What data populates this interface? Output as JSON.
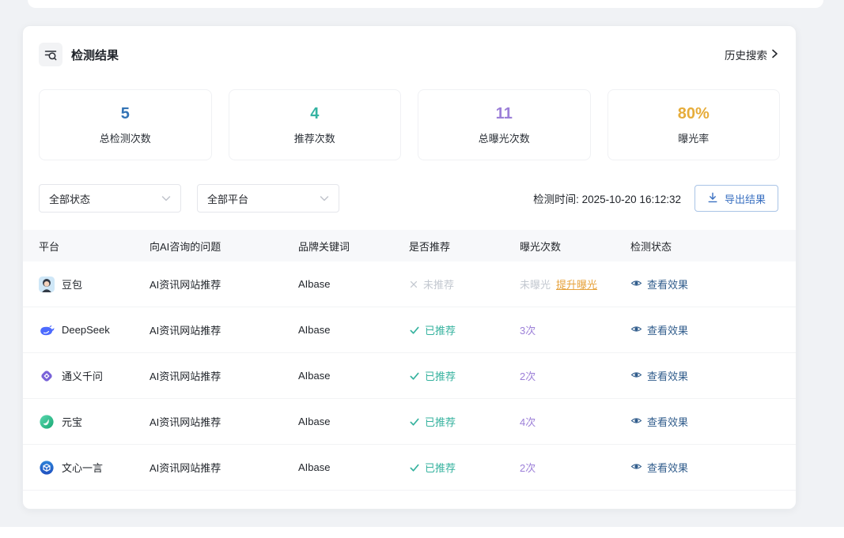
{
  "panel": {
    "title": "检测结果",
    "title_icon": "search-list-icon",
    "history_label": "历史搜索",
    "history_icon": "chevron-right-icon"
  },
  "stats": [
    {
      "value": "5",
      "label": "总检测次数",
      "color": "#3273b5"
    },
    {
      "value": "4",
      "label": "推荐次数",
      "color": "#35b3a2"
    },
    {
      "value": "11",
      "label": "总曝光次数",
      "color": "#9c7fd8"
    },
    {
      "value": "80%",
      "label": "曝光率",
      "color": "#e6ac3a"
    }
  ],
  "filters": {
    "status_value": "全部状态",
    "platform_value": "全部平台",
    "select_icon": "chevron-down-icon",
    "detect_time": "检测时间: 2025-10-20 16:12:32",
    "export_label": "导出结果",
    "export_icon": "download-icon"
  },
  "table": {
    "headers": [
      "平台",
      "向AI咨询的问题",
      "品牌关键词",
      "是否推荐",
      "曝光次数",
      "检测状态"
    ],
    "rows": [
      {
        "platform": "豆包",
        "logo_icon": "doubao-avatar-icon",
        "question": "AI资讯网站推荐",
        "keyword": "AIbase",
        "recommended": false,
        "recommend_label": "未推荐",
        "recommend_icon": "cross-icon",
        "exposure_label": "未曝光",
        "boost_label": "提升曝光",
        "action_label": "查看效果",
        "action_icon": "eye-icon"
      },
      {
        "platform": "DeepSeek",
        "logo_icon": "deepseek-whale-icon",
        "question": "AI资讯网站推荐",
        "keyword": "AIbase",
        "recommended": true,
        "recommend_label": "已推荐",
        "recommend_icon": "check-icon",
        "exposure_label": "3次",
        "action_label": "查看效果",
        "action_icon": "eye-icon"
      },
      {
        "platform": "通义千问",
        "logo_icon": "qianwen-logo-icon",
        "question": "AI资讯网站推荐",
        "keyword": "AIbase",
        "recommended": true,
        "recommend_label": "已推荐",
        "recommend_icon": "check-icon",
        "exposure_label": "2次",
        "action_label": "查看效果",
        "action_icon": "eye-icon"
      },
      {
        "platform": "元宝",
        "logo_icon": "yuanbao-logo-icon",
        "question": "AI资讯网站推荐",
        "keyword": "AIbase",
        "recommended": true,
        "recommend_label": "已推荐",
        "recommend_icon": "check-icon",
        "exposure_label": "4次",
        "action_label": "查看效果",
        "action_icon": "eye-icon"
      },
      {
        "platform": "文心一言",
        "logo_icon": "wenxin-logo-icon",
        "question": "AI资讯网站推荐",
        "keyword": "AIbase",
        "recommended": true,
        "recommend_label": "已推荐",
        "recommend_icon": "check-icon",
        "exposure_label": "2次",
        "action_label": "查看效果",
        "action_icon": "eye-icon"
      }
    ]
  },
  "colors": {
    "page_bg": "#f0f2f5",
    "recommended_teal": "#35b29e",
    "not_recommended_gray": "#c3c8d0",
    "exposure_purple": "#9c7fd8",
    "boost_orange": "#e6a23c",
    "action_blue": "#315d8c",
    "export_blue": "#3a70c1"
  }
}
